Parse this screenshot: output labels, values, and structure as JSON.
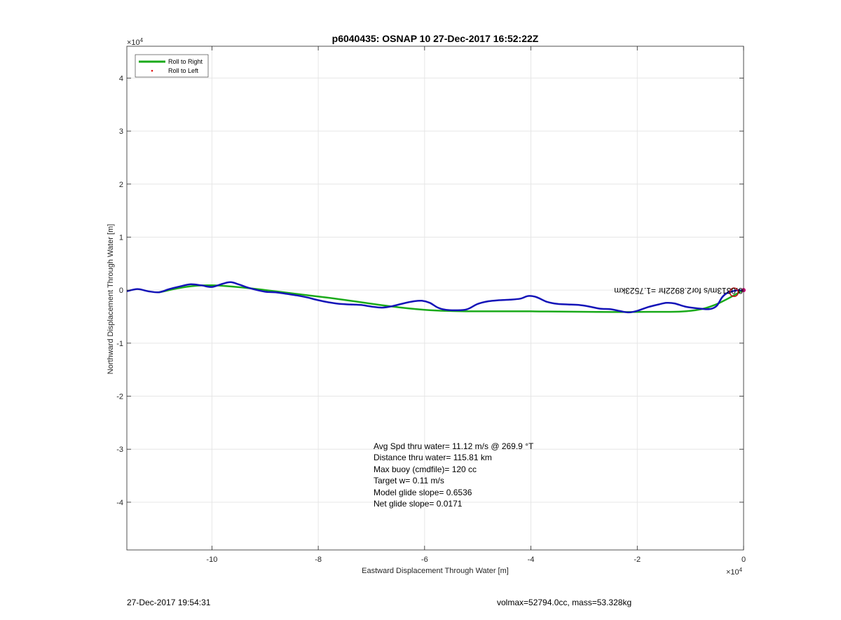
{
  "chart_data": {
    "type": "line",
    "title": "p6040435: OSNAP 10 27-Dec-2017 16:52:22Z",
    "xlabel": "Eastward Displacement Through Water [m]",
    "ylabel": "Northward Displacement Through Water [m]",
    "x_exponent": "×10",
    "x_exponent_power": "4",
    "y_exponent": "×10",
    "y_exponent_power": "4",
    "xlim": [
      -11.6,
      0
    ],
    "ylim": [
      -4.9,
      4.6
    ],
    "x_ticks": [
      -10,
      -8,
      -6,
      -4,
      -2,
      0
    ],
    "y_ticks": [
      -4,
      -3,
      -2,
      -1,
      0,
      1,
      2,
      3,
      4
    ],
    "grid": true,
    "legend": {
      "placement": "top-left",
      "entries": [
        {
          "label": "Roll to Right",
          "color": "#1aaa1a",
          "style": "line"
        },
        {
          "label": "Roll to Left",
          "color": "#e01010",
          "style": "dot"
        }
      ]
    },
    "series": [
      {
        "color": "#1aaa1a",
        "x": [
          -11.0,
          -10.0,
          -8.0,
          -6.0,
          -4.0,
          -2.0,
          -0.8,
          0.0
        ],
        "y": [
          -0.04,
          0.09,
          -0.12,
          -0.37,
          -0.4,
          -0.41,
          -0.36,
          0.0
        ]
      },
      {
        "color": "#1414b8",
        "x": [
          -11.6,
          -11.4,
          -11.2,
          -11.0,
          -10.8,
          -10.6,
          -10.4,
          -10.2,
          -10.0,
          -9.8,
          -9.65,
          -9.5,
          -9.3,
          -9.0,
          -8.8,
          -8.6,
          -8.4,
          -8.2,
          -8.0,
          -7.8,
          -7.6,
          -7.4,
          -7.2,
          -7.0,
          -6.8,
          -6.6,
          -6.4,
          -6.2,
          -6.05,
          -5.9,
          -5.75,
          -5.6,
          -5.4,
          -5.2,
          -5.0,
          -4.8,
          -4.6,
          -4.4,
          -4.2,
          -4.05,
          -3.9,
          -3.7,
          -3.5,
          -3.3,
          -3.1,
          -2.9,
          -2.7,
          -2.5,
          -2.3,
          -2.15,
          -2.0,
          -1.8,
          -1.6,
          -1.45,
          -1.3,
          -1.1,
          -0.9,
          -0.8,
          -0.7,
          -0.6,
          -0.5,
          -0.4,
          -0.3,
          -0.2,
          -0.1,
          0.0
        ],
        "y": [
          -0.02,
          0.02,
          -0.02,
          -0.04,
          0.02,
          0.07,
          0.11,
          0.09,
          0.06,
          0.12,
          0.15,
          0.11,
          0.04,
          -0.03,
          -0.04,
          -0.07,
          -0.1,
          -0.14,
          -0.19,
          -0.23,
          -0.26,
          -0.27,
          -0.28,
          -0.31,
          -0.33,
          -0.3,
          -0.25,
          -0.21,
          -0.2,
          -0.24,
          -0.33,
          -0.37,
          -0.38,
          -0.36,
          -0.26,
          -0.21,
          -0.19,
          -0.18,
          -0.16,
          -0.11,
          -0.13,
          -0.22,
          -0.26,
          -0.27,
          -0.28,
          -0.31,
          -0.35,
          -0.36,
          -0.4,
          -0.42,
          -0.39,
          -0.32,
          -0.27,
          -0.24,
          -0.25,
          -0.31,
          -0.34,
          -0.35,
          -0.36,
          -0.35,
          -0.29,
          -0.13,
          -0.05,
          -0.02,
          0.0,
          -0.01
        ]
      }
    ],
    "end_markers": {
      "circle": {
        "x": -0.18,
        "y": -0.04,
        "color": "#c01010"
      },
      "dot": {
        "x": 0.0,
        "y": 0.0,
        "color": "#cc0077"
      }
    },
    "annotations": [
      "Avg Spd thru water= 11.12 m/s @ 269.9 °T",
      "Distance thru water= 115.81 km",
      "Max buoy (cmdfile)= 120 cc",
      "Target w= 0.11 m/s",
      "Model glide slope= 0.6536",
      "Net glide slope= 0.0171"
    ],
    "rotated_annotation": "0.0313m/s for2.8922hr =1.7523km"
  },
  "footer": {
    "timestamp": "27-Dec-2017 19:54:31",
    "volmax": "volmax=52794.0cc, mass=53.328kg"
  }
}
